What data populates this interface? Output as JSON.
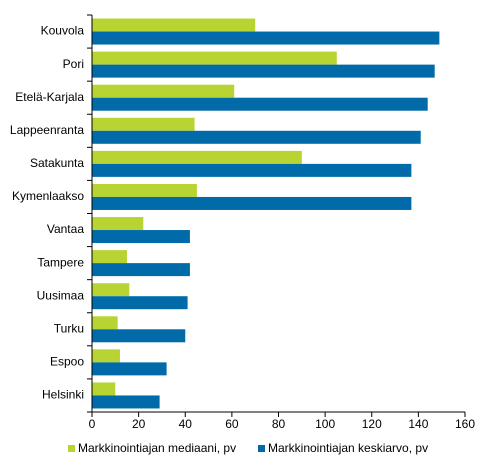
{
  "chart_data": {
    "type": "bar",
    "orientation": "horizontal",
    "categories": [
      "Kouvola",
      "Pori",
      "Etelä-Karjala",
      "Lappeenranta",
      "Satakunta",
      "Kymenlaakso",
      "Vantaa",
      "Tampere",
      "Uusimaa",
      "Turku",
      "Espoo",
      "Helsinki"
    ],
    "series": [
      {
        "name": "Markkinointiajan mediaani, pv",
        "color": "#b8d432",
        "values": [
          70,
          105,
          61,
          44,
          90,
          45,
          22,
          15,
          16,
          11,
          12,
          10
        ]
      },
      {
        "name": "Markkinointiajan keskiarvo, pv",
        "color": "#006ba8",
        "values": [
          149,
          147,
          144,
          141,
          137,
          137,
          42,
          42,
          41,
          40,
          32,
          29
        ]
      }
    ],
    "xlim": [
      0,
      160
    ],
    "xticks": [
      0,
      20,
      40,
      60,
      80,
      100,
      120,
      140,
      160
    ],
    "legend": "bottom"
  }
}
